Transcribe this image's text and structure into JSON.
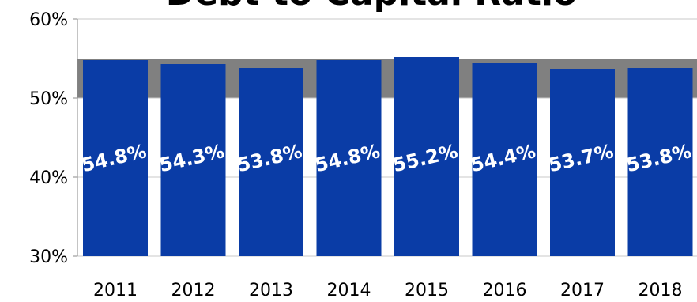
{
  "chart_data": {
    "type": "bar",
    "title": "Debt to Capital Ratio",
    "categories": [
      "2011",
      "2012",
      "2013",
      "2014",
      "2015",
      "2016",
      "2017",
      "2018"
    ],
    "values": [
      54.8,
      54.3,
      53.8,
      54.8,
      55.2,
      54.4,
      53.7,
      53.8
    ],
    "data_labels": [
      "54.8%",
      "54.3%",
      "53.8%",
      "54.8%",
      "55.2%",
      "54.4%",
      "53.7%",
      "53.8%"
    ],
    "ylim": [
      30,
      60
    ],
    "yticks": [
      "30%",
      "40%",
      "50%",
      "60%"
    ],
    "reference_band": [
      50,
      55
    ],
    "xlabel": "",
    "ylabel": "",
    "grid": true,
    "colors": {
      "bar": "#0a3ca6",
      "band": "#808080",
      "grid": "#c8c8c8"
    }
  }
}
